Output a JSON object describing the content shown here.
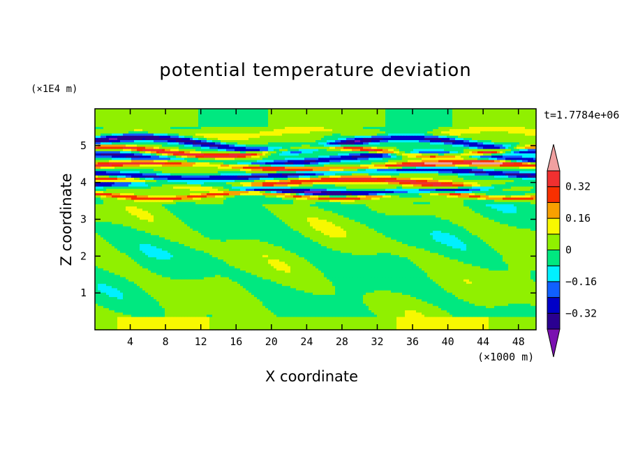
{
  "chart_data": {
    "type": "heatmap",
    "title": "potential temperature deviation",
    "xlabel": "X coordinate",
    "ylabel": "Z coordinate",
    "x_unit": "(×1000 m)",
    "y_unit": "(×1E4 m)",
    "time_label": "t=1.7784e+06",
    "xlim": [
      0,
      50
    ],
    "ylim": [
      0,
      6
    ],
    "x_ticks": [
      4,
      8,
      12,
      16,
      20,
      24,
      28,
      32,
      36,
      40,
      44,
      48
    ],
    "y_ticks": [
      1,
      2,
      3,
      4,
      5
    ],
    "colorbar": {
      "levels": [
        -0.4,
        -0.32,
        -0.24,
        -0.16,
        -0.08,
        0,
        0.08,
        0.16,
        0.24,
        0.32,
        0.4
      ],
      "labels": [
        {
          "value": 0.32,
          "text": "0.32"
        },
        {
          "value": 0.16,
          "text": "0.16"
        },
        {
          "value": 0,
          "text": "0"
        },
        {
          "value": -0.16,
          "text": "−0.16"
        },
        {
          "value": -0.32,
          "text": "−0.32"
        }
      ],
      "colors_low_to_high": [
        "#7a10b0",
        "#2a0090",
        "#0000c8",
        "#1060ff",
        "#00f0ff",
        "#00e880",
        "#90f000",
        "#f8f800",
        "#f8a000",
        "#f83000",
        "#f03030",
        "#f0a0a0"
      ]
    },
    "field_layers": [
      {
        "z": 5.05,
        "half_width": 0.1,
        "value": -0.36,
        "amp": 0.18,
        "wavelength": 30,
        "phase": 0.5
      },
      {
        "z": 4.85,
        "half_width": 0.07,
        "value": 0.38,
        "amp": 0.12,
        "wavelength": 25,
        "phase": 1.2
      },
      {
        "z": 4.65,
        "half_width": 0.09,
        "value": -0.3,
        "amp": 0.15,
        "wavelength": 40,
        "phase": 2.0
      },
      {
        "z": 4.45,
        "half_width": 0.08,
        "value": 0.4,
        "amp": 0.1,
        "wavelength": 35,
        "phase": 0.2
      },
      {
        "z": 4.25,
        "half_width": 0.08,
        "value": -0.34,
        "amp": 0.12,
        "wavelength": 45,
        "phase": 3.0
      },
      {
        "z": 4.0,
        "half_width": 0.09,
        "value": 0.34,
        "amp": 0.1,
        "wavelength": 30,
        "phase": 1.7
      },
      {
        "z": 3.85,
        "half_width": 0.08,
        "value": -0.38,
        "amp": 0.14,
        "wavelength": 50,
        "phase": 0.9
      },
      {
        "z": 3.65,
        "half_width": 0.06,
        "value": 0.28,
        "amp": 0.08,
        "wavelength": 20,
        "phase": 2.4
      },
      {
        "z": 5.35,
        "half_width": 0.1,
        "value": 0.1,
        "amp": 0.1,
        "wavelength": 20,
        "phase": 0.0
      }
    ]
  }
}
